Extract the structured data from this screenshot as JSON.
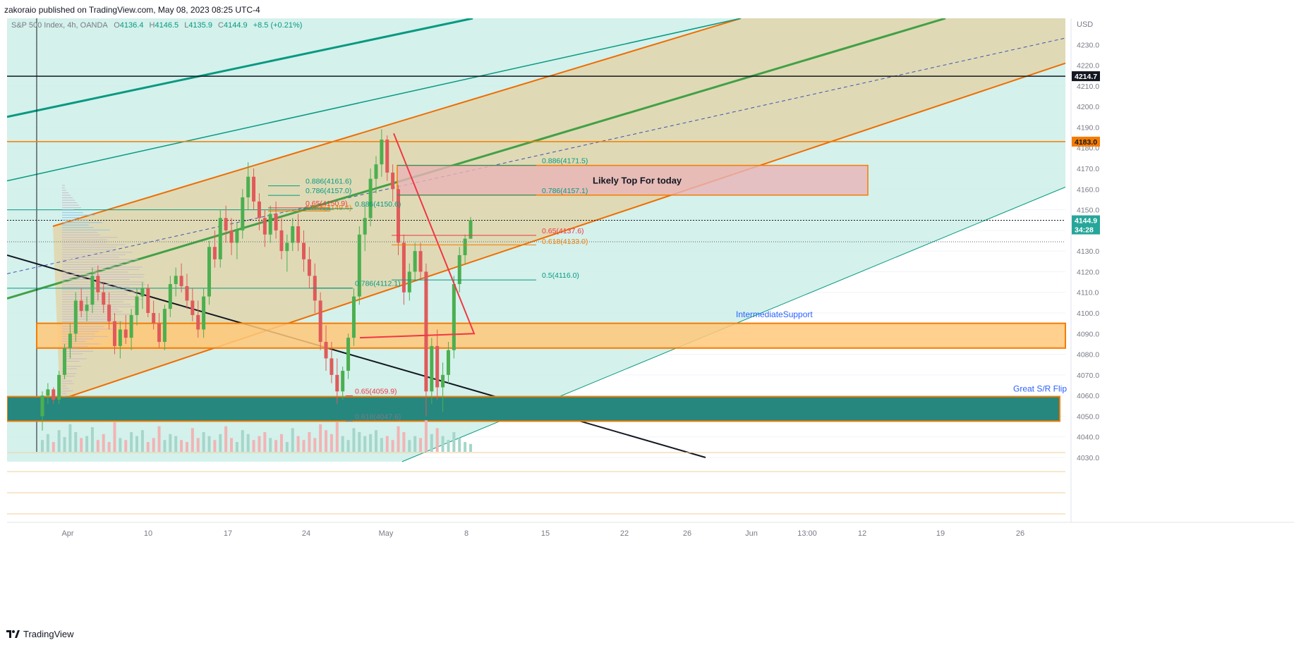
{
  "header": {
    "published_by": "zakoraio published on TradingView.com, May 08, 2023 08:25 UTC-4"
  },
  "footer": {
    "brand": "TradingView"
  },
  "colors": {
    "channel_fill": "#e3d2a3",
    "channel_edge": "#ef6c00",
    "teal_bg": "#cdeee9",
    "support_teal": "#26877f",
    "zone_orange": "#ffc87a",
    "zone_pink": "#e8b4b8",
    "up_candle": "#4caf50",
    "down_candle": "#e05a5a",
    "fib_green": "#089981",
    "fib_red": "#f23645",
    "fib_orange": "#f57c00",
    "label_blue": "#2962ff"
  },
  "chart_data": {
    "type": "candlestick",
    "symbol_line": {
      "name": "S&P 500 Index, 4h, OANDA",
      "o_label": "O",
      "o": "4136.4",
      "h_label": "H",
      "h": "4146.5",
      "l_label": "L",
      "l": "4135.9",
      "c_label": "C",
      "c": "4144.9",
      "change": "+8.5 (+0.21%)"
    },
    "currency": "USD",
    "ylim": [
      4030,
      4240
    ],
    "y_ticks": [
      "4230.0",
      "4220.0",
      "4210.0",
      "4200.0",
      "4190.0",
      "4180.0",
      "4170.0",
      "4160.0",
      "4150.0",
      "4140.0",
      "4130.0",
      "4120.0",
      "4110.0",
      "4100.0",
      "4090.0",
      "4080.0",
      "4070.0",
      "4060.0",
      "4050.0",
      "4040.0",
      "4030.0"
    ],
    "x_ticks": [
      "Apr",
      "10",
      "17",
      "24",
      "May",
      "8",
      "15",
      "22",
      "26",
      "Jun",
      "13:00",
      "12",
      "19",
      "26"
    ],
    "price_badges": [
      {
        "value": "4214.7",
        "kind": "black"
      },
      {
        "value": "4183.0",
        "kind": "orange"
      },
      {
        "value": "4144.9",
        "kind": "current"
      },
      {
        "value": "34:28",
        "kind": "countdown"
      }
    ],
    "annotations": [
      {
        "text": "Likely Top For today",
        "kind": "zone-label"
      },
      {
        "text": "IntermediateSupport",
        "kind": "blue-label"
      },
      {
        "text": "Great S/R Flip",
        "kind": "blue-label"
      }
    ],
    "fib_labels": [
      {
        "text": "0.886(4171.5)",
        "kind": "green"
      },
      {
        "text": "0.786(4157.1)",
        "kind": "green"
      },
      {
        "text": "0.886(4161.6)",
        "kind": "green"
      },
      {
        "text": "0.786(4157.0)",
        "kind": "green"
      },
      {
        "text": "0.65(4150.9)",
        "kind": "red"
      },
      {
        "text": "0.618(4149.4)",
        "kind": "orange"
      },
      {
        "text": "0.886(4150.6)",
        "kind": "green"
      },
      {
        "text": "0.65(4137.6)",
        "kind": "red"
      },
      {
        "text": "0.618(4133.0)",
        "kind": "orange"
      },
      {
        "text": "0.5(4116.0)",
        "kind": "green"
      },
      {
        "text": "0.786(4112.1)",
        "kind": "green"
      },
      {
        "text": "0.65(4059.9)",
        "kind": "red"
      },
      {
        "text": "0.618(4047.6)",
        "kind": "grey"
      }
    ],
    "candles": [
      [
        4050,
        4062,
        4043,
        4060
      ],
      [
        4060,
        4066,
        4056,
        4063
      ],
      [
        4063,
        4064,
        4056,
        4058
      ],
      [
        4058,
        4072,
        4056,
        4070
      ],
      [
        4070,
        4085,
        4068,
        4083
      ],
      [
        4083,
        4095,
        4078,
        4090
      ],
      [
        4090,
        4110,
        4086,
        4106
      ],
      [
        4106,
        4112,
        4098,
        4101
      ],
      [
        4101,
        4108,
        4096,
        4104
      ],
      [
        4104,
        4122,
        4100,
        4118
      ],
      [
        4118,
        4123,
        4106,
        4110
      ],
      [
        4110,
        4115,
        4100,
        4104
      ],
      [
        4104,
        4110,
        4092,
        4096
      ],
      [
        4096,
        4100,
        4080,
        4084
      ],
      [
        4084,
        4096,
        4078,
        4092
      ],
      [
        4092,
        4099,
        4085,
        4088
      ],
      [
        4088,
        4102,
        4082,
        4099
      ],
      [
        4099,
        4112,
        4094,
        4108
      ],
      [
        4108,
        4115,
        4102,
        4112
      ],
      [
        4112,
        4114,
        4098,
        4100
      ],
      [
        4100,
        4106,
        4092,
        4095
      ],
      [
        4095,
        4100,
        4083,
        4086
      ],
      [
        4086,
        4104,
        4082,
        4102
      ],
      [
        4102,
        4118,
        4098,
        4114
      ],
      [
        4114,
        4122,
        4108,
        4118
      ],
      [
        4118,
        4124,
        4110,
        4113
      ],
      [
        4113,
        4119,
        4102,
        4106
      ],
      [
        4106,
        4112,
        4096,
        4099
      ],
      [
        4099,
        4106,
        4088,
        4092
      ],
      [
        4092,
        4112,
        4088,
        4108
      ],
      [
        4108,
        4135,
        4104,
        4132
      ],
      [
        4132,
        4140,
        4122,
        4126
      ],
      [
        4126,
        4150,
        4122,
        4146
      ],
      [
        4146,
        4152,
        4134,
        4140
      ],
      [
        4140,
        4146,
        4128,
        4134
      ],
      [
        4134,
        4144,
        4126,
        4140
      ],
      [
        4140,
        4160,
        4136,
        4156
      ],
      [
        4156,
        4173,
        4150,
        4166
      ],
      [
        4166,
        4170,
        4150,
        4154
      ],
      [
        4154,
        4158,
        4140,
        4146
      ],
      [
        4146,
        4150,
        4132,
        4138
      ],
      [
        4138,
        4152,
        4134,
        4148
      ],
      [
        4148,
        4154,
        4136,
        4140
      ],
      [
        4140,
        4146,
        4126,
        4130
      ],
      [
        4130,
        4138,
        4120,
        4134
      ],
      [
        4134,
        4146,
        4130,
        4142
      ],
      [
        4142,
        4148,
        4130,
        4134
      ],
      [
        4134,
        4140,
        4120,
        4126
      ],
      [
        4126,
        4132,
        4112,
        4118
      ],
      [
        4118,
        4124,
        4100,
        4106
      ],
      [
        4106,
        4110,
        4082,
        4086
      ],
      [
        4086,
        4094,
        4072,
        4078
      ],
      [
        4078,
        4086,
        4066,
        4070
      ],
      [
        4070,
        4078,
        4056,
        4062
      ],
      [
        4062,
        4074,
        4058,
        4072
      ],
      [
        4072,
        4090,
        4068,
        4088
      ],
      [
        4088,
        4112,
        4084,
        4108
      ],
      [
        4108,
        4142,
        4104,
        4138
      ],
      [
        4138,
        4152,
        4130,
        4146
      ],
      [
        4146,
        4170,
        4142,
        4165
      ],
      [
        4165,
        4176,
        4158,
        4172
      ],
      [
        4172,
        4189,
        4166,
        4184
      ],
      [
        4184,
        4186,
        4164,
        4168
      ],
      [
        4168,
        4172,
        4154,
        4160
      ],
      [
        4160,
        4162,
        4128,
        4134
      ],
      [
        4134,
        4138,
        4104,
        4110
      ],
      [
        4110,
        4124,
        4106,
        4120
      ],
      [
        4120,
        4134,
        4116,
        4130
      ],
      [
        4130,
        4134,
        4116,
        4120
      ],
      [
        4120,
        4124,
        4050,
        4062
      ],
      [
        4062,
        4088,
        4056,
        4084
      ],
      [
        4084,
        4092,
        4058,
        4064
      ],
      [
        4064,
        4076,
        4052,
        4070
      ],
      [
        4070,
        4086,
        4066,
        4082
      ],
      [
        4082,
        4118,
        4078,
        4114
      ],
      [
        4114,
        4132,
        4110,
        4128
      ],
      [
        4128,
        4138,
        4124,
        4136
      ],
      [
        4136,
        4146.5,
        4135.9,
        4144.9
      ]
    ],
    "volumes": [
      12,
      18,
      10,
      22,
      15,
      28,
      20,
      14,
      16,
      25,
      12,
      18,
      10,
      30,
      14,
      12,
      20,
      16,
      22,
      10,
      14,
      26,
      12,
      18,
      16,
      12,
      10,
      24,
      14,
      20,
      16,
      12,
      18,
      26,
      14,
      10,
      22,
      18,
      12,
      16,
      20,
      14,
      12,
      18,
      10,
      24,
      16,
      12,
      20,
      14,
      28,
      22,
      18,
      30,
      16,
      12,
      24,
      20,
      16,
      18,
      22,
      14,
      16,
      12,
      26,
      20,
      12,
      16,
      14,
      32,
      18,
      24,
      16,
      12,
      20,
      14,
      10,
      8
    ]
  }
}
